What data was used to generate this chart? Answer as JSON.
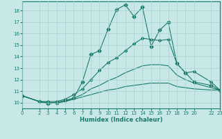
{
  "title": "",
  "xlabel": "Humidex (Indice chaleur)",
  "ylabel": "",
  "background_color": "#c8e8e8",
  "line_color": "#1a7a6a",
  "grid_color": "#a8d0d0",
  "xlim": [
    0,
    23
  ],
  "ylim": [
    9.5,
    18.8
  ],
  "xticks": [
    0,
    2,
    3,
    4,
    5,
    6,
    7,
    8,
    9,
    10,
    11,
    12,
    13,
    14,
    15,
    16,
    17,
    18,
    19,
    20,
    22,
    23
  ],
  "yticks": [
    10,
    11,
    12,
    13,
    14,
    15,
    16,
    17,
    18
  ],
  "series": [
    {
      "x": [
        0,
        2,
        3,
        4,
        5,
        6,
        7,
        8,
        9,
        10,
        11,
        12,
        13,
        14,
        15,
        16,
        17,
        18,
        19,
        20,
        22,
        23
      ],
      "y": [
        10.6,
        10.1,
        9.9,
        10.0,
        10.2,
        10.4,
        11.8,
        14.2,
        14.5,
        16.4,
        18.1,
        18.5,
        17.5,
        18.3,
        14.9,
        16.3,
        17.0,
        13.4,
        12.6,
        11.8,
        11.5,
        11.1
      ],
      "marker": "D",
      "markersize": 2.5
    },
    {
      "x": [
        0,
        2,
        3,
        4,
        5,
        6,
        7,
        8,
        9,
        10,
        11,
        12,
        13,
        14,
        15,
        16,
        17,
        18,
        19,
        20,
        22,
        23
      ],
      "y": [
        10.6,
        10.1,
        10.1,
        10.1,
        10.3,
        10.7,
        11.2,
        12.0,
        12.8,
        13.5,
        13.9,
        14.5,
        15.1,
        15.6,
        15.5,
        15.4,
        15.5,
        13.4,
        12.6,
        12.7,
        11.8,
        11.1
      ],
      "marker": "D",
      "markersize": 2.0
    },
    {
      "x": [
        0,
        2,
        3,
        4,
        5,
        6,
        7,
        8,
        9,
        10,
        11,
        12,
        13,
        14,
        15,
        16,
        17,
        18,
        19,
        20,
        22,
        23
      ],
      "y": [
        10.6,
        10.1,
        10.0,
        10.0,
        10.1,
        10.4,
        10.7,
        11.2,
        11.5,
        11.9,
        12.2,
        12.6,
        12.9,
        13.2,
        13.3,
        13.3,
        13.2,
        12.4,
        12.0,
        11.7,
        11.3,
        11.1
      ],
      "marker": null,
      "markersize": 0
    },
    {
      "x": [
        0,
        2,
        3,
        4,
        5,
        6,
        7,
        8,
        9,
        10,
        11,
        12,
        13,
        14,
        15,
        16,
        17,
        18,
        19,
        20,
        22,
        23
      ],
      "y": [
        10.6,
        10.1,
        10.0,
        10.0,
        10.1,
        10.3,
        10.5,
        10.7,
        10.9,
        11.1,
        11.2,
        11.4,
        11.5,
        11.6,
        11.7,
        11.7,
        11.7,
        11.4,
        11.3,
        11.2,
        11.1,
        11.1
      ],
      "marker": null,
      "markersize": 0
    }
  ]
}
